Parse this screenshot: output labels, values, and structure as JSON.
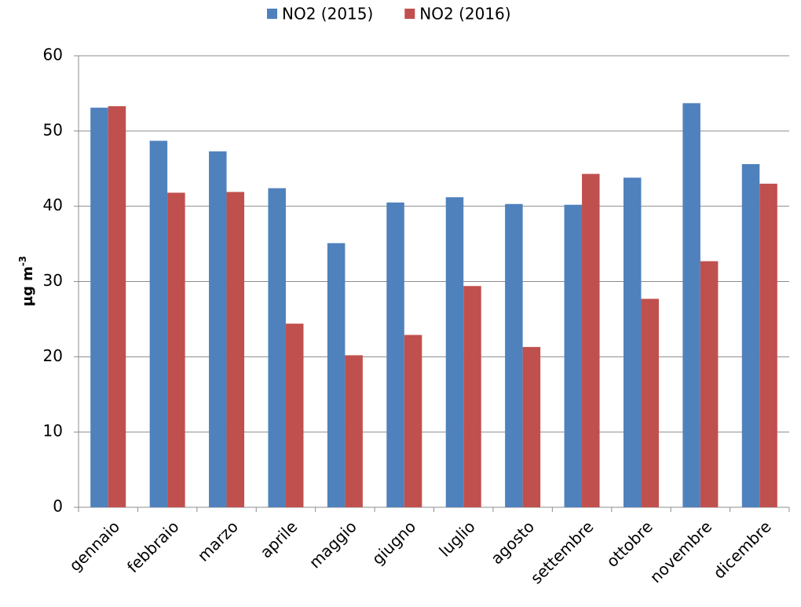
{
  "chart_data": {
    "type": "bar",
    "y_label": "µg m",
    "y_label_superscript": "-3",
    "categories": [
      "gennaio",
      "febbraio",
      "marzo",
      "aprile",
      "maggio",
      "giugno",
      "luglio",
      "agosto",
      "settembre",
      "ottobre",
      "novembre",
      "dicembre"
    ],
    "series": [
      {
        "name": "NO2 (2015)",
        "color": "#4f81bd",
        "values": [
          53.1,
          48.7,
          47.3,
          42.4,
          35.1,
          40.5,
          41.2,
          40.3,
          40.2,
          43.8,
          53.7,
          45.6
        ]
      },
      {
        "name": "NO2 (2016)",
        "color": "#c0504d",
        "values": [
          53.3,
          41.8,
          41.9,
          24.4,
          20.2,
          22.9,
          29.4,
          21.3,
          44.3,
          27.7,
          32.7,
          43.0
        ]
      }
    ],
    "ylim": [
      0,
      60
    ],
    "yticks": [
      0,
      10,
      20,
      30,
      40,
      50,
      60
    ],
    "grid": true,
    "legend": "top"
  }
}
